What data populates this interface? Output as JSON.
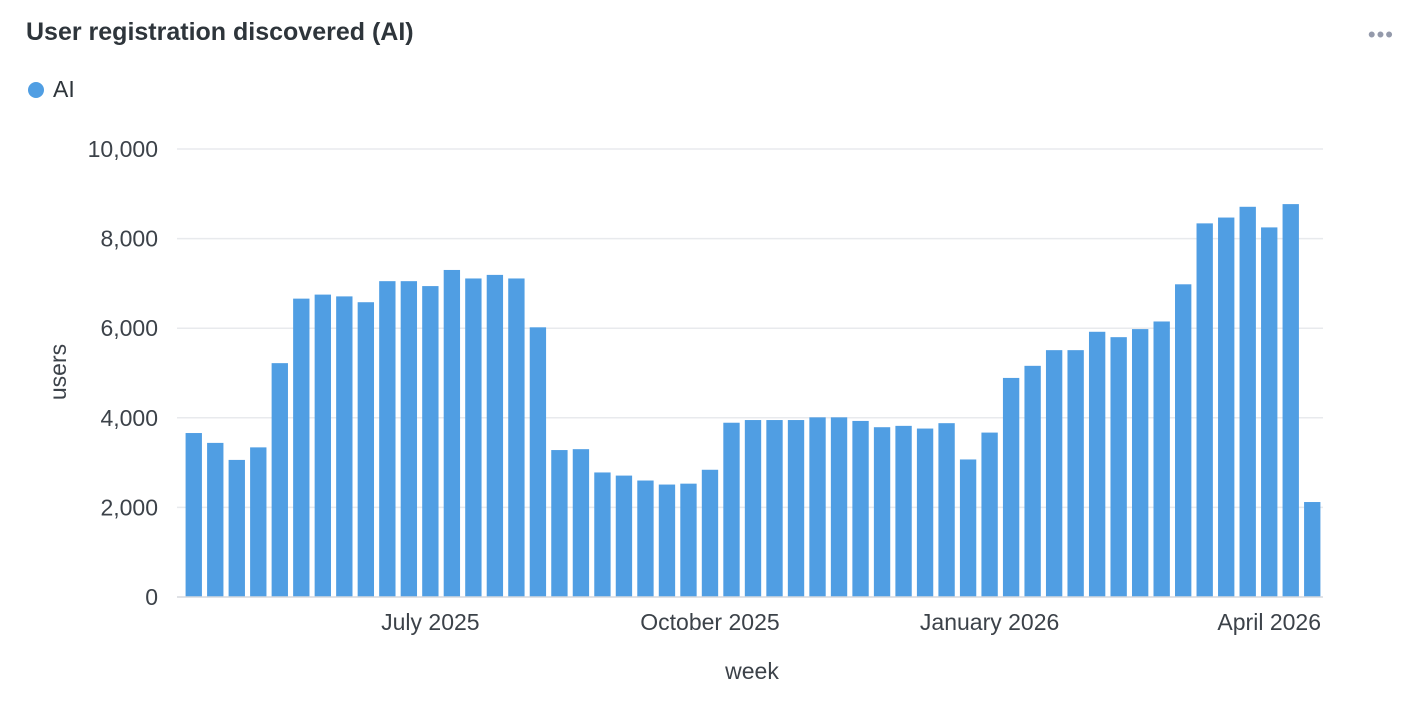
{
  "card": {
    "title": "User registration discovered (AI)",
    "menu_icon": "ellipsis-icon",
    "menu_glyph": "•••"
  },
  "chart_data": {
    "type": "bar",
    "title": "User registration discovered (AI)",
    "xlabel": "week",
    "ylabel": "users",
    "ylim": [
      0,
      10000
    ],
    "yticks": [
      0,
      2000,
      4000,
      6000,
      8000,
      10000
    ],
    "ytick_labels": [
      "0",
      "2,000",
      "4,000",
      "6,000",
      "8,000",
      "10,000"
    ],
    "xtick_labels": [
      {
        "label": "July 2025",
        "bar_index": 11
      },
      {
        "label": "October 2025",
        "bar_index": 24
      },
      {
        "label": "January 2026",
        "bar_index": 37
      },
      {
        "label": "April 2026",
        "bar_index": 50
      }
    ],
    "grid": true,
    "legend_position": "top-left",
    "color": "#509ee3",
    "series": [
      {
        "name": "AI",
        "values": [
          3660,
          3440,
          3060,
          3340,
          5220,
          6660,
          6750,
          6710,
          6580,
          7050,
          7050,
          6940,
          7300,
          7110,
          7190,
          7110,
          6020,
          3280,
          3300,
          2780,
          2710,
          2600,
          2510,
          2530,
          2840,
          3890,
          3950,
          3950,
          3950,
          4010,
          4010,
          3930,
          3790,
          3820,
          3760,
          3880,
          3070,
          3670,
          4890,
          5160,
          5510,
          5510,
          5920,
          5800,
          5980,
          6150,
          6980,
          8340,
          8470,
          8710,
          8250,
          8770,
          2120
        ]
      }
    ]
  }
}
